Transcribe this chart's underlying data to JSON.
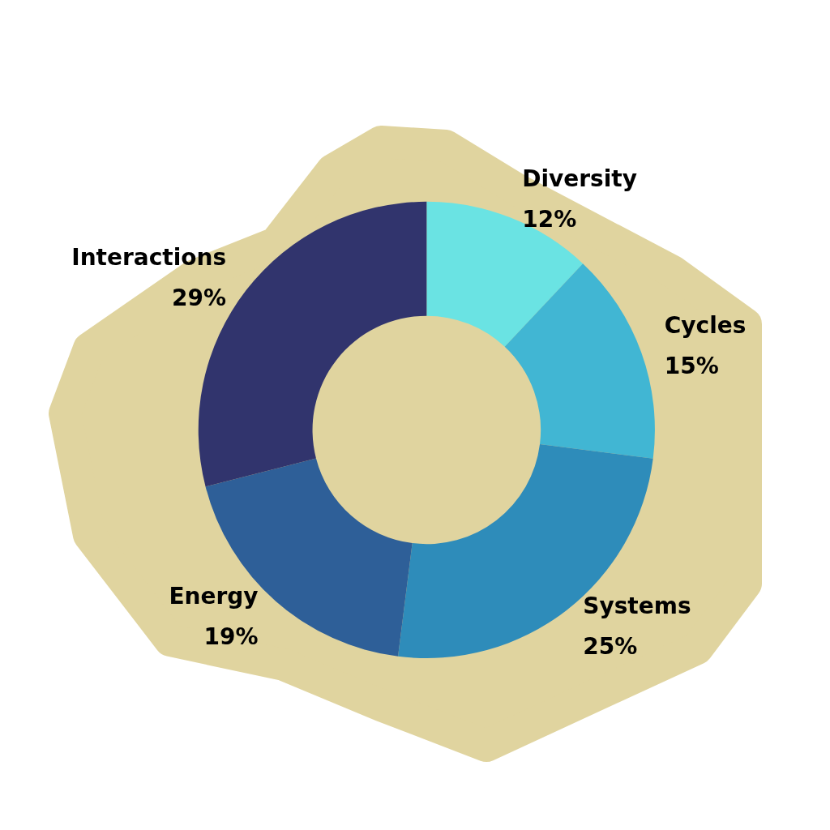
{
  "chart_data": {
    "type": "donut",
    "categories": [
      "Diversity",
      "Cycles",
      "Systems",
      "Energy",
      "Interactions"
    ],
    "values": [
      12,
      15,
      25,
      19,
      29
    ],
    "colors": [
      "#6ae3e3",
      "#41b6d3",
      "#2e8cba",
      "#2e5f98",
      "#31346d"
    ],
    "value_labels": [
      "12%",
      "15%",
      "25%",
      "19%",
      "29%"
    ]
  }
}
